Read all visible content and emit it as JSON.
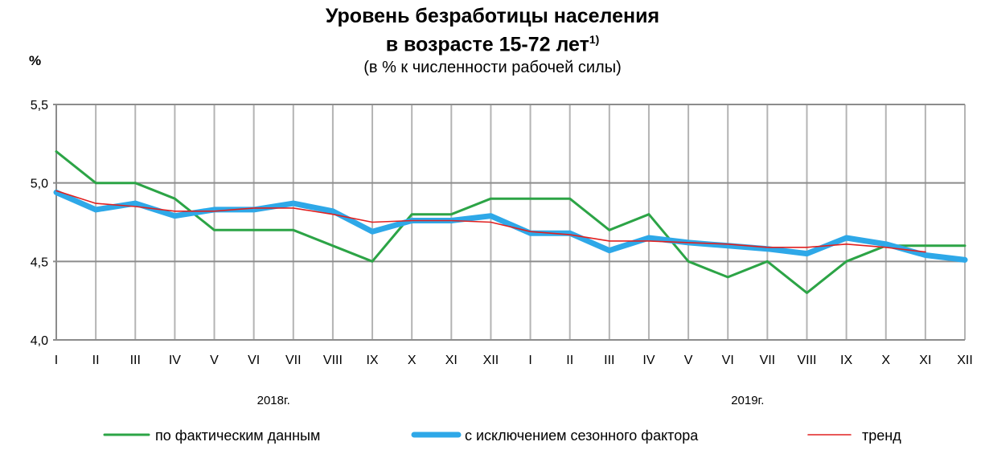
{
  "chart_data": {
    "type": "line",
    "title": "Уровень безработицы населения",
    "title_line2": "в возрасте 15-72 лет",
    "title_sup": "1)",
    "subtitle": "(в % к численности рабочей силы)",
    "ylabel": "%",
    "ylim": [
      4.0,
      5.5
    ],
    "yticks": [
      "4,0",
      "4,5",
      "5,0",
      "5,5"
    ],
    "ytick_values": [
      4.0,
      4.5,
      5.0,
      5.5
    ],
    "grid": true,
    "legend_position": "bottom",
    "categories": [
      "I",
      "II",
      "III",
      "IV",
      "V",
      "VI",
      "VII",
      "VIII",
      "IX",
      "X",
      "XI",
      "XII",
      "I",
      "II",
      "III",
      "IV",
      "V",
      "VI",
      "VII",
      "VIII",
      "IX",
      "X",
      "XI",
      "XII"
    ],
    "year_labels": [
      "2018г.",
      "2019г."
    ],
    "series": [
      {
        "name": "по фактическим данным",
        "color": "#2ca446",
        "values": [
          5.2,
          5.0,
          5.0,
          4.9,
          4.7,
          4.7,
          4.7,
          4.6,
          4.5,
          4.8,
          4.8,
          4.9,
          4.9,
          4.9,
          4.7,
          4.8,
          4.5,
          4.4,
          4.5,
          4.3,
          4.5,
          4.6,
          4.6,
          4.6
        ]
      },
      {
        "name": "с исключением сезонного фактора",
        "color": "#2ea8e8",
        "values": [
          4.94,
          4.83,
          4.87,
          4.79,
          4.83,
          4.83,
          4.87,
          4.82,
          4.69,
          4.76,
          4.76,
          4.79,
          4.68,
          4.68,
          4.57,
          4.65,
          4.62,
          4.6,
          4.58,
          4.55,
          4.65,
          4.61,
          4.54,
          4.51
        ]
      },
      {
        "name": "тренд",
        "color": "#e02020",
        "values": [
          4.95,
          4.87,
          4.85,
          4.82,
          4.82,
          4.84,
          4.84,
          4.8,
          4.75,
          4.76,
          4.76,
          4.75,
          4.69,
          4.67,
          4.63,
          4.63,
          4.62,
          4.61,
          4.59,
          4.59,
          4.61,
          4.59,
          4.56,
          null
        ]
      }
    ]
  }
}
